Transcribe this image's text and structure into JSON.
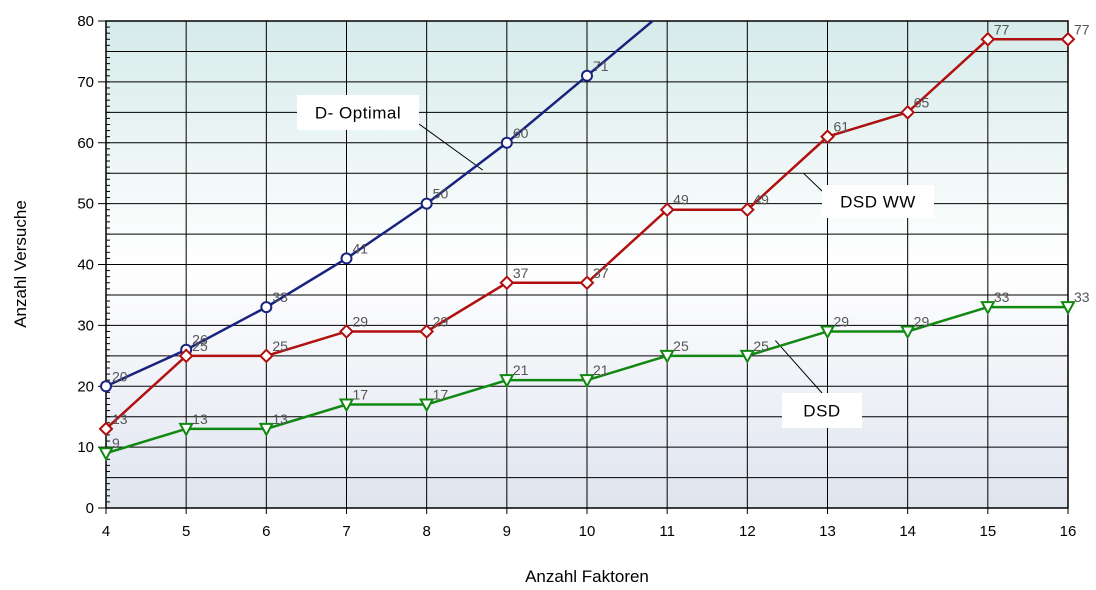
{
  "chart_data": {
    "type": "line",
    "title": "",
    "xlabel": "Anzahl Faktoren",
    "ylabel": "Anzahl Versuche",
    "x": [
      4,
      5,
      6,
      7,
      8,
      9,
      10,
      11,
      12,
      13,
      14,
      15,
      16
    ],
    "xlim": [
      4,
      16
    ],
    "ylim": [
      0,
      80
    ],
    "y_ticks": [
      0,
      10,
      20,
      30,
      40,
      50,
      60,
      70,
      80
    ],
    "grid": true,
    "series": [
      {
        "name": "D- Optimal",
        "color": "#1a237e",
        "marker": "circle",
        "x": [
          4,
          5,
          6,
          7,
          8,
          9,
          10,
          11
        ],
        "values": [
          20,
          26,
          33,
          41,
          50,
          60,
          71,
          82
        ],
        "labels": [
          "20",
          "26",
          "33",
          "41",
          "50",
          "60",
          "71"
        ]
      },
      {
        "name": "DSD WW",
        "color": "#b01010",
        "marker": "diamond",
        "x": [
          4,
          5,
          6,
          7,
          8,
          9,
          10,
          11,
          12,
          13,
          14,
          15,
          16
        ],
        "values": [
          13,
          25,
          25,
          29,
          29,
          37,
          37,
          49,
          49,
          61,
          65,
          77,
          77
        ],
        "labels": [
          "13",
          "25",
          "25",
          "29",
          "29",
          "37",
          "37",
          "49",
          "49",
          "61",
          "65",
          "77",
          "77"
        ]
      },
      {
        "name": "DSD",
        "color": "#118811",
        "marker": "triangle-down",
        "x": [
          4,
          5,
          6,
          7,
          8,
          9,
          10,
          11,
          12,
          13,
          14,
          15,
          16
        ],
        "values": [
          9,
          13,
          13,
          17,
          17,
          21,
          21,
          25,
          25,
          29,
          29,
          33,
          33
        ],
        "labels": [
          "9",
          "13",
          "13",
          "17",
          "17",
          "21",
          "21",
          "25",
          "25",
          "29",
          "29",
          "33",
          "33"
        ]
      }
    ],
    "annotations": [
      {
        "text": "D- Optimal",
        "series": "D- Optimal"
      },
      {
        "text": "DSD WW",
        "series": "DSD WW"
      },
      {
        "text": "DSD",
        "series": "DSD"
      }
    ]
  }
}
